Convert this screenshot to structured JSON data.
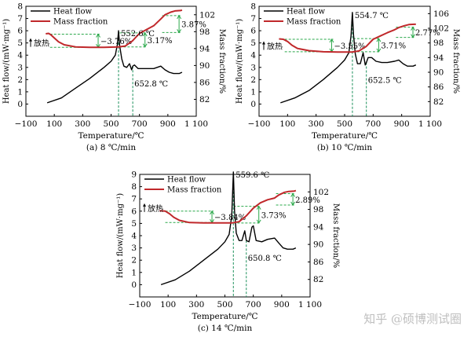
{
  "colors": {
    "heat": "#000000",
    "mass": "#c0282b",
    "vline": "#1a8f5a",
    "arrow": "#2aa84a"
  },
  "watermark": "知乎 @硕博测试圈",
  "chart_data": [
    {
      "type": "line",
      "caption": "(a) 8 ℃/min",
      "xlabel": "Temperature/℃",
      "ylabel_left": "Heat flow/(mW·mg⁻¹)",
      "ylabel_right": "Mass fraction/%",
      "xlim": [
        -100,
        1100
      ],
      "xticks": [
        -100,
        100,
        300,
        500,
        700,
        900,
        1100
      ],
      "xtick_labels": [
        "−100",
        "100",
        "300",
        "500",
        "700",
        "900",
        "1 100"
      ],
      "ylim_left": [
        -1,
        8
      ],
      "yticks_left": [
        0,
        1,
        2,
        3,
        4,
        5,
        6,
        7,
        8
      ],
      "ylim_right": [
        78,
        104
      ],
      "yticks_right": [
        82,
        86,
        90,
        94,
        98,
        102
      ],
      "legend": [
        "Heat flow",
        "Mass fraction"
      ],
      "exo_label": "放热",
      "exo_y": 5.0,
      "peaks": [
        {
          "label": "552.6 ℃",
          "x": 552.6,
          "y": 6.0
        },
        {
          "label": "652.8 ℃",
          "x": 652.8,
          "y": 3.1
        }
      ],
      "steps": [
        {
          "label": "−3.76%",
          "x1": 70,
          "x2": 420,
          "y_top": 97.4,
          "y_bot": 94.3
        },
        {
          "label": "3.17%",
          "x1": 560,
          "x2": 750,
          "y_top": 97.7,
          "y_bot": 94.4
        },
        {
          "label": "3.87%",
          "x1": 860,
          "x2": 990,
          "y_top": 101.8,
          "y_bot": 97.8
        }
      ],
      "series": [
        {
          "name": "Heat flow",
          "axis": "left",
          "x": [
            50,
            150,
            250,
            350,
            450,
            500,
            530,
            545,
            552.6,
            560,
            575,
            590,
            610,
            630,
            645,
            652.8,
            665,
            690,
            720,
            760,
            800,
            850,
            880,
            910,
            940,
            980,
            1000
          ],
          "y": [
            0.1,
            0.5,
            1.3,
            2.1,
            3.0,
            3.5,
            4.0,
            4.9,
            6.0,
            4.8,
            3.7,
            3.1,
            3.0,
            3.3,
            2.8,
            3.1,
            3.2,
            2.9,
            2.9,
            2.9,
            2.9,
            3.1,
            2.8,
            2.6,
            2.5,
            2.5,
            2.6
          ]
        },
        {
          "name": "Mass fraction",
          "axis": "right",
          "x": [
            40,
            60,
            75,
            100,
            130,
            170,
            250,
            350,
            450,
            550,
            600,
            650,
            700,
            750,
            800,
            850,
            880,
            920,
            950,
            990,
            1000
          ],
          "y": [
            97.5,
            97.6,
            97.3,
            96.5,
            95.6,
            94.9,
            94.4,
            94.3,
            94.3,
            94.4,
            94.6,
            95.8,
            97.6,
            98.5,
            99.4,
            101.0,
            102.0,
            102.6,
            102.9,
            103.0,
            103.1
          ]
        }
      ]
    },
    {
      "type": "line",
      "caption": "(b) 10 ℃/min",
      "xlabel": "Temperature/℃",
      "ylabel_left": "Heat flow/(mW·mg⁻¹)",
      "ylabel_right": "Mass fraction/%",
      "xlim": [
        -100,
        1100
      ],
      "xticks": [
        -100,
        100,
        300,
        500,
        700,
        900,
        1100
      ],
      "xtick_labels": [
        "−100",
        "100",
        "300",
        "500",
        "700",
        "900",
        "1 100"
      ],
      "ylim_left": [
        -1,
        8
      ],
      "yticks_left": [
        0,
        1,
        2,
        3,
        4,
        5,
        6,
        7,
        8
      ],
      "ylim_right": [
        78,
        108
      ],
      "yticks_right": [
        82,
        86,
        90,
        94,
        98,
        102,
        106
      ],
      "legend": [
        "Heat flow",
        "Mass fraction"
      ],
      "exo_label": "放热",
      "exo_y": 4.75,
      "peaks": [
        {
          "label": "554.7 ℃",
          "x": 554.7,
          "y": 7.5
        },
        {
          "label": "652.5 ℃",
          "x": 652.5,
          "y": 3.4
        }
      ],
      "steps": [
        {
          "label": "−3.55%",
          "x1": 80,
          "x2": 420,
          "y_top": 99.0,
          "y_bot": 95.6
        },
        {
          "label": "3.71%",
          "x1": 560,
          "x2": 750,
          "y_top": 99.2,
          "y_bot": 95.6
        },
        {
          "label": "2.77%",
          "x1": 860,
          "x2": 990,
          "y_top": 102.3,
          "y_bot": 99.5
        }
      ],
      "series": [
        {
          "name": "Heat flow",
          "axis": "left",
          "x": [
            50,
            150,
            250,
            350,
            450,
            500,
            530,
            545,
            554.7,
            562,
            575,
            590,
            610,
            630,
            645,
            652.5,
            665,
            690,
            720,
            760,
            800,
            850,
            880,
            910,
            940,
            980,
            1000
          ],
          "y": [
            0.1,
            0.5,
            1.1,
            2.0,
            3.0,
            3.6,
            4.2,
            5.6,
            7.5,
            5.7,
            4.1,
            3.3,
            3.3,
            4.2,
            3.2,
            3.4,
            3.8,
            3.8,
            3.5,
            3.4,
            3.4,
            3.5,
            3.6,
            3.3,
            3.1,
            3.1,
            3.2
          ]
        },
        {
          "name": "Mass fraction",
          "axis": "right",
          "x": [
            40,
            70,
            100,
            130,
            170,
            250,
            350,
            450,
            550,
            600,
            650,
            700,
            750,
            800,
            850,
            880,
            920,
            950,
            990,
            1000
          ],
          "y": [
            99.1,
            99.0,
            98.4,
            97.4,
            96.5,
            95.9,
            95.6,
            95.5,
            95.5,
            95.8,
            97.0,
            99.0,
            99.9,
            100.8,
            101.6,
            102.2,
            102.7,
            103.0,
            103.1,
            103.1
          ]
        }
      ]
    },
    {
      "type": "line",
      "caption": "(c) 14 ℃/min",
      "xlabel": "Temperature/℃",
      "ylabel_left": "Heat flow/(mW·mg⁻¹)",
      "ylabel_right": "Mass fraction/%",
      "xlim": [
        -100,
        1100
      ],
      "xticks": [
        -100,
        100,
        300,
        500,
        700,
        900,
        1100
      ],
      "xtick_labels": [
        "−100",
        "100",
        "300",
        "500",
        "700",
        "900",
        "1 100"
      ],
      "ylim_left": [
        -1,
        9
      ],
      "yticks_left": [
        0,
        1,
        2,
        3,
        4,
        5,
        6,
        7,
        8,
        9
      ],
      "ylim_right": [
        78,
        106
      ],
      "yticks_right": [
        82,
        86,
        90,
        94,
        98,
        102
      ],
      "legend": [
        "Heat flow",
        "Mass fraction"
      ],
      "exo_label": "放热",
      "exo_y": 6.25,
      "peaks": [
        {
          "label": "559.6 ℃",
          "x": 559.6,
          "y": 9.2
        },
        {
          "label": "650.8 ℃",
          "x": 650.8,
          "y": 3.6
        }
      ],
      "steps": [
        {
          "label": "−3.84%",
          "x1": 80,
          "x2": 420,
          "y_top": 97.6,
          "y_bot": 95.0
        },
        {
          "label": "3.73%",
          "x1": 560,
          "x2": 750,
          "y_top": 98.7,
          "y_bot": 94.9
        },
        {
          "label": "2.89%",
          "x1": 860,
          "x2": 990,
          "y_top": 101.6,
          "y_bot": 99.0
        }
      ],
      "series": [
        {
          "name": "Heat flow",
          "axis": "left",
          "x": [
            50,
            150,
            250,
            350,
            450,
            500,
            530,
            548,
            559.6,
            568,
            580,
            600,
            620,
            640,
            650.8,
            670,
            690,
            700,
            720,
            760,
            800,
            850,
            880,
            910,
            940,
            980,
            1000
          ],
          "y": [
            0.0,
            0.4,
            1.1,
            2.0,
            2.9,
            3.5,
            4.1,
            5.6,
            9.2,
            6.0,
            4.2,
            3.6,
            3.6,
            4.4,
            3.6,
            3.5,
            4.7,
            4.8,
            3.6,
            3.5,
            3.7,
            3.8,
            3.4,
            3.0,
            2.9,
            2.9,
            3.0
          ]
        },
        {
          "name": "Mass fraction",
          "axis": "right",
          "x": [
            40,
            80,
            110,
            140,
            180,
            250,
            350,
            450,
            550,
            600,
            650,
            700,
            750,
            800,
            850,
            880,
            920,
            950,
            990,
            1000
          ],
          "y": [
            97.7,
            97.6,
            97.0,
            96.2,
            95.5,
            95.0,
            94.9,
            94.9,
            94.9,
            95.2,
            96.5,
            98.3,
            99.5,
            100.2,
            100.6,
            101.3,
            101.9,
            102.1,
            102.2,
            102.3
          ]
        }
      ]
    }
  ]
}
